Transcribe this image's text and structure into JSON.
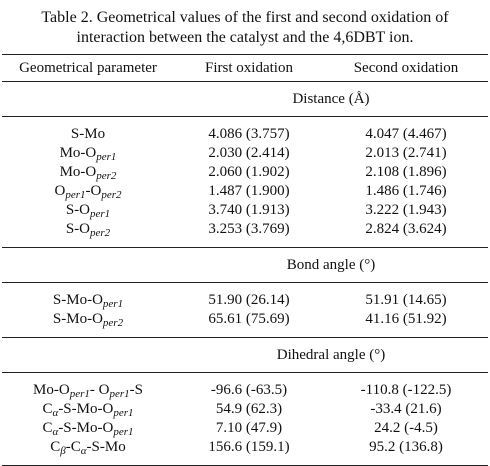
{
  "caption": [
    "Table 2. Geometrical values of the first and second oxidation of",
    "interaction between the catalyst and the 4,6DBT ion."
  ],
  "table": {
    "headers": [
      "Geometrical parameter",
      "First oxidation",
      "Second oxidation"
    ],
    "sections": [
      {
        "title": "Distance (Å)",
        "rows": [
          {
            "param": [
              {
                "t": "S-Mo"
              }
            ],
            "values": [
              "4.086 (3.757)",
              "4.047 (4.467)"
            ]
          },
          {
            "param": [
              {
                "t": "Mo-O"
              },
              {
                "sub": "per1"
              }
            ],
            "values": [
              "2.030 (2.414)",
              "2.013 (2.741)"
            ]
          },
          {
            "param": [
              {
                "t": "Mo-O"
              },
              {
                "sub": "per2"
              }
            ],
            "values": [
              "2.060 (1.902)",
              "2.108 (1.896)"
            ]
          },
          {
            "param": [
              {
                "t": "O"
              },
              {
                "sub": "per1"
              },
              {
                "t": "-O"
              },
              {
                "sub": "per2"
              }
            ],
            "values": [
              "1.487 (1.900)",
              "1.486 (1.746)"
            ]
          },
          {
            "param": [
              {
                "t": "S-O"
              },
              {
                "sub": "per1"
              }
            ],
            "values": [
              "3.740 (1.913)",
              "3.222 (1.943)"
            ]
          },
          {
            "param": [
              {
                "t": "S-O"
              },
              {
                "sub": "per2"
              }
            ],
            "values": [
              "3.253 (3.769)",
              "2.824 (3.624)"
            ]
          }
        ]
      },
      {
        "title": "Bond angle (°)",
        "rows": [
          {
            "param": [
              {
                "t": "S-Mo-O"
              },
              {
                "sub": "per1"
              }
            ],
            "values": [
              "51.90 (26.14)",
              "51.91 (14.65)"
            ]
          },
          {
            "param": [
              {
                "t": "S-Mo-O"
              },
              {
                "sub": "per2"
              }
            ],
            "values": [
              "65.61 (75.69)",
              "41.16 (51.92)"
            ]
          }
        ]
      },
      {
        "title": "Dihedral angle (°)",
        "rows": [
          {
            "param": [
              {
                "t": "Mo-O"
              },
              {
                "sub": "per1"
              },
              {
                "t": "- O"
              },
              {
                "sub": "per1"
              },
              {
                "t": "-S"
              }
            ],
            "values": [
              "-96.6 (-63.5)",
              "-110.8 (-122.5)"
            ]
          },
          {
            "param": [
              {
                "t": "C"
              },
              {
                "sub": "α"
              },
              {
                "t": "-S-Mo-O"
              },
              {
                "sub": "per1"
              }
            ],
            "values": [
              "54.9 (62.3)",
              "-33.4 (21.6)"
            ]
          },
          {
            "param": [
              {
                "t": "C"
              },
              {
                "sub": "α"
              },
              {
                "t": "-S-Mo-O"
              },
              {
                "sub": "per1"
              }
            ],
            "values": [
              "7.10 (47.9)",
              "24.2 (-4.5)"
            ]
          },
          {
            "param": [
              {
                "t": "C"
              },
              {
                "sub": "β"
              },
              {
                "t": "-C"
              },
              {
                "sub": "α"
              },
              {
                "t": "-S-Mo"
              }
            ],
            "values": [
              "156.6 (159.1)",
              "95.2 (136.8)"
            ]
          }
        ]
      }
    ]
  }
}
